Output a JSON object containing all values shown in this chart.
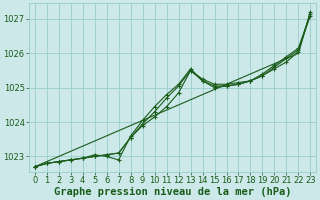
{
  "bg_color": "#cce8e8",
  "grid_color": "#99cccc",
  "line_color": "#1a5c1a",
  "marker_color": "#1a5c1a",
  "xlabel": "Graphe pression niveau de la mer (hPa)",
  "xlabel_fontsize": 7.5,
  "tick_fontsize": 6,
  "xlim": [
    -0.5,
    23.5
  ],
  "ylim": [
    1022.55,
    1027.45
  ],
  "yticks": [
    1023,
    1024,
    1025,
    1026,
    1027
  ],
  "xticks": [
    0,
    1,
    2,
    3,
    4,
    5,
    6,
    7,
    8,
    9,
    10,
    11,
    12,
    13,
    14,
    15,
    16,
    17,
    18,
    19,
    20,
    21,
    22,
    23
  ],
  "series_smooth": [
    1022.7,
    1022.85,
    1023.0,
    1023.15,
    1023.3,
    1023.45,
    1023.6,
    1023.75,
    1023.9,
    1024.05,
    1024.2,
    1024.35,
    1024.5,
    1024.65,
    1024.8,
    1024.95,
    1025.1,
    1025.25,
    1025.4,
    1025.55,
    1025.7,
    1025.85,
    1026.0,
    1027.2
  ],
  "series1": [
    1022.7,
    1022.8,
    1022.85,
    1022.9,
    1022.95,
    1023.0,
    1023.05,
    1023.1,
    1023.55,
    1023.9,
    1024.15,
    1024.45,
    1024.85,
    1025.5,
    1025.2,
    1025.05,
    1025.05,
    1025.1,
    1025.2,
    1025.35,
    1025.55,
    1025.75,
    1026.05,
    1027.2
  ],
  "series2": [
    1022.7,
    1022.8,
    1022.85,
    1022.9,
    1022.95,
    1023.0,
    1023.05,
    1023.1,
    1023.55,
    1023.95,
    1024.3,
    1024.7,
    1025.05,
    1025.5,
    1025.25,
    1025.1,
    1025.1,
    1025.15,
    1025.2,
    1025.35,
    1025.6,
    1025.85,
    1026.1,
    1027.1
  ],
  "series3": [
    1022.7,
    1022.8,
    1022.85,
    1022.9,
    1022.95,
    1023.05,
    1023.0,
    1022.9,
    1023.6,
    1024.05,
    1024.45,
    1024.8,
    1025.1,
    1025.55,
    1025.2,
    1025.0,
    1025.05,
    1025.1,
    1025.2,
    1025.4,
    1025.65,
    1025.9,
    1026.15,
    1027.15
  ]
}
